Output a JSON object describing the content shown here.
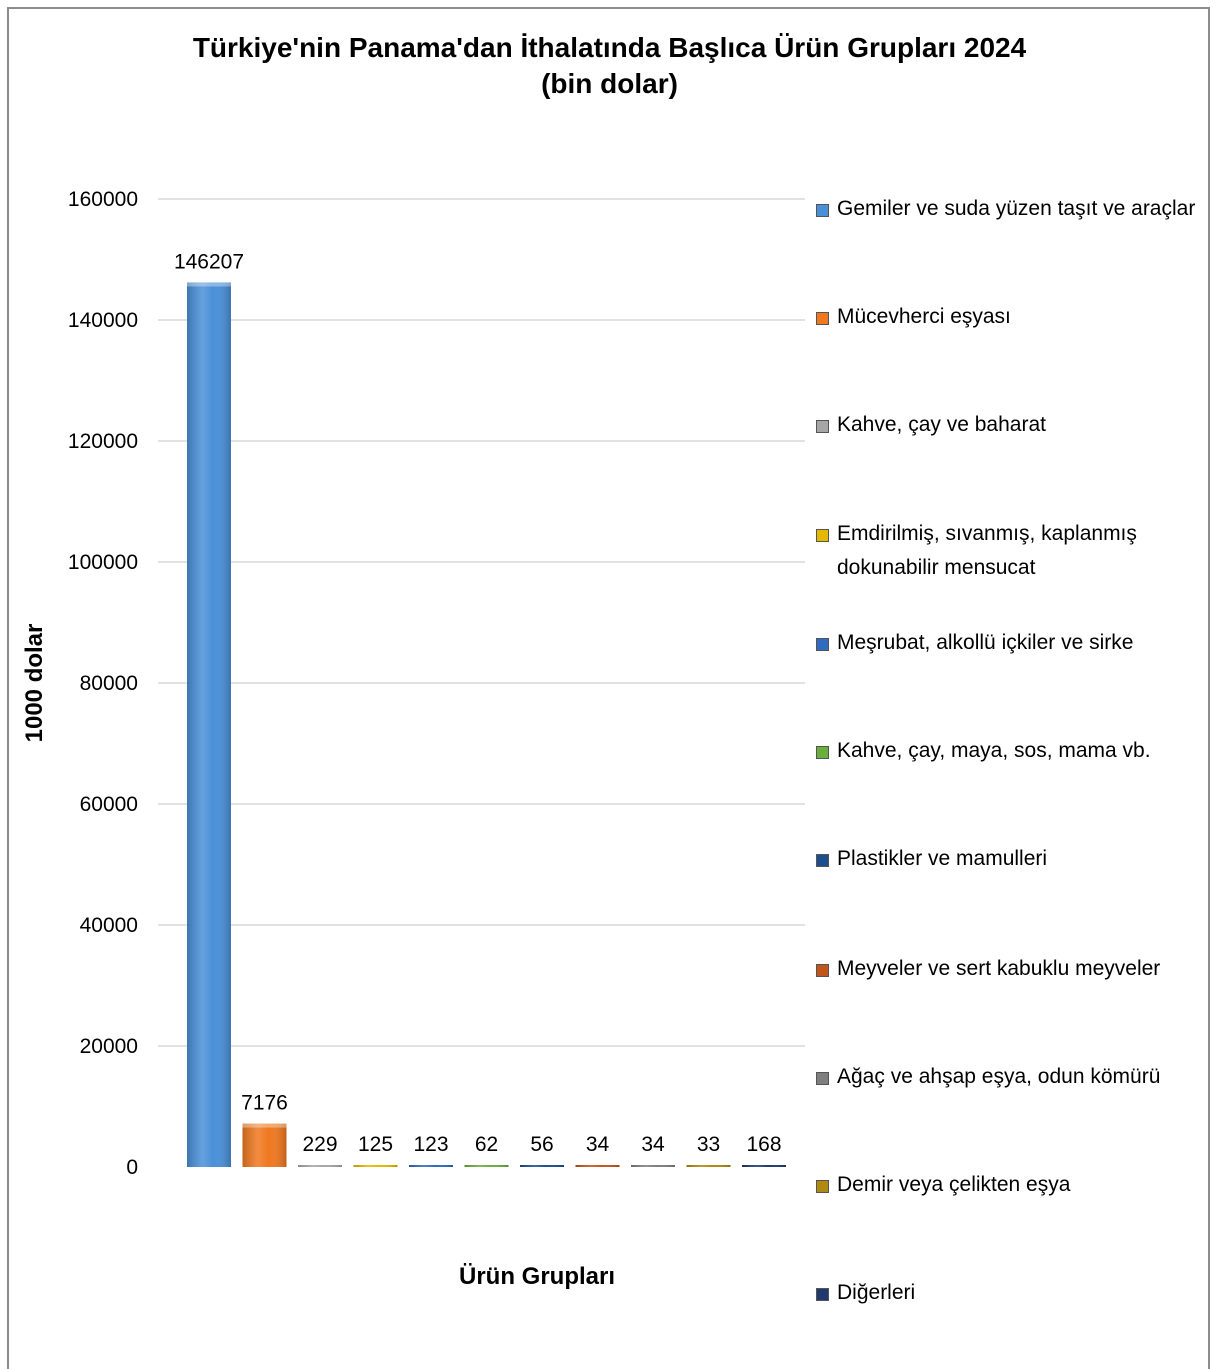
{
  "chart_data": {
    "type": "bar",
    "title": "Türkiye'nin Panama'dan İthalatında Başlıca Ürün Grupları 2024",
    "subtitle": "(bin dolar)",
    "xlabel": "Ürün Grupları",
    "ylabel": "1000 dolar",
    "ylim": [
      0,
      160000
    ],
    "yticks": [
      "0",
      "20000",
      "40000",
      "60000",
      "80000",
      "100000",
      "120000",
      "140000",
      "160000"
    ],
    "grid": true,
    "legend_position": "right",
    "categories": [
      "Gemiler ve suda yüzen taşıt ve araçlar",
      "Mücevherci eşyası",
      "Kahve, çay ve baharat",
      "Emdirilmiş, sıvanmış, kaplanmış dokunabilir mensucat",
      "Meşrubat, alkollü içkiler ve sirke",
      "Kahve, çay, maya, sos, mama vb.",
      "Plastikler ve mamulleri",
      "Meyveler ve sert kabuklu meyveler",
      "Ağaç ve ahşap eşya, odun kömürü",
      "Demir veya çelikten eşya",
      "Diğerleri"
    ],
    "values": [
      146207,
      7176,
      229,
      125,
      123,
      62,
      56,
      34,
      34,
      33,
      168
    ],
    "data_labels": [
      "146207",
      "7176",
      "229",
      "125",
      "123",
      "62",
      "56",
      "34",
      "34",
      "33",
      "168"
    ],
    "colors": [
      "#4a90d9",
      "#f07820",
      "#a6a6a6",
      "#e6b800",
      "#2f6bbf",
      "#6aae3c",
      "#1f4e8c",
      "#c0561a",
      "#7f7f7f",
      "#b08a10",
      "#1f3a6e"
    ]
  }
}
